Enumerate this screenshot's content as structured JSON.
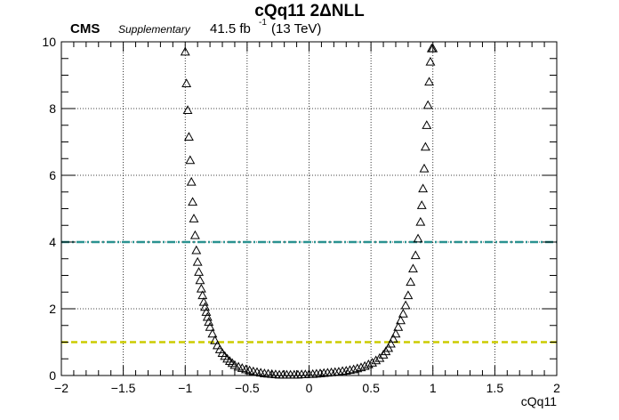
{
  "chart_data": {
    "type": "scatter",
    "title": "cQq11 2ΔNLL",
    "experiment": "CMS",
    "tag": "Supplementary",
    "lumi_value": "41.5 fb",
    "lumi_exp": "-1",
    "lumi_energy": "(13 TeV)",
    "xlabel": "cQq11",
    "ylabel": "",
    "xlim": [
      -2,
      2
    ],
    "ylim": [
      0,
      10
    ],
    "x_ticks": [
      "−2",
      "−1.5",
      "−1",
      "−0.5",
      "0",
      "0.5",
      "1",
      "1.5",
      "2"
    ],
    "y_ticks": [
      "0",
      "2",
      "4",
      "6",
      "8",
      "10"
    ],
    "grid": true,
    "marker": "open-triangle",
    "reference_lines": [
      {
        "y": 4,
        "color": "#2a9290",
        "style": "dash-dot"
      },
      {
        "y": 1,
        "color": "#cccc00",
        "style": "dashed"
      }
    ],
    "x": [
      -1.0,
      -0.99,
      -0.98,
      -0.97,
      -0.96,
      -0.95,
      -0.94,
      -0.93,
      -0.92,
      -0.91,
      -0.9,
      -0.89,
      -0.88,
      -0.87,
      -0.86,
      -0.85,
      -0.84,
      -0.83,
      -0.82,
      -0.81,
      -0.8,
      -0.78,
      -0.76,
      -0.74,
      -0.72,
      -0.7,
      -0.68,
      -0.66,
      -0.64,
      -0.62,
      -0.6,
      -0.57,
      -0.54,
      -0.51,
      -0.48,
      -0.45,
      -0.42,
      -0.39,
      -0.36,
      -0.33,
      -0.3,
      -0.27,
      -0.24,
      -0.21,
      -0.18,
      -0.15,
      -0.12,
      -0.09,
      -0.06,
      -0.03,
      0.0,
      0.03,
      0.06,
      0.09,
      0.12,
      0.15,
      0.18,
      0.21,
      0.24,
      0.27,
      0.3,
      0.33,
      0.36,
      0.39,
      0.42,
      0.45,
      0.48,
      0.51,
      0.54,
      0.57,
      0.6,
      0.62,
      0.64,
      0.66,
      0.68,
      0.7,
      0.72,
      0.74,
      0.76,
      0.78,
      0.8,
      0.82,
      0.84,
      0.86,
      0.88,
      0.9,
      0.91,
      0.92,
      0.93,
      0.94,
      0.95,
      0.96,
      0.97,
      0.98,
      0.99,
      1.0
    ],
    "y": [
      9.7,
      8.75,
      7.95,
      7.15,
      6.45,
      5.8,
      5.2,
      4.7,
      4.2,
      3.75,
      3.4,
      3.1,
      2.85,
      2.6,
      2.4,
      2.2,
      2.05,
      1.9,
      1.75,
      1.6,
      1.45,
      1.25,
      1.05,
      0.9,
      0.78,
      0.67,
      0.58,
      0.5,
      0.43,
      0.37,
      0.31,
      0.26,
      0.22,
      0.18,
      0.15,
      0.12,
      0.1,
      0.08,
      0.06,
      0.05,
      0.04,
      0.03,
      0.02,
      0.02,
      0.02,
      0.02,
      0.02,
      0.02,
      0.03,
      0.03,
      0.04,
      0.04,
      0.05,
      0.06,
      0.07,
      0.08,
      0.09,
      0.1,
      0.11,
      0.13,
      0.14,
      0.16,
      0.18,
      0.21,
      0.24,
      0.28,
      0.33,
      0.38,
      0.45,
      0.52,
      0.62,
      0.72,
      0.82,
      0.95,
      1.1,
      1.25,
      1.45,
      1.65,
      1.85,
      2.1,
      2.4,
      2.8,
      3.2,
      3.6,
      4.1,
      4.6,
      5.1,
      5.6,
      6.2,
      6.85,
      7.5,
      8.1,
      8.8,
      9.4,
      9.8,
      9.8
    ]
  }
}
